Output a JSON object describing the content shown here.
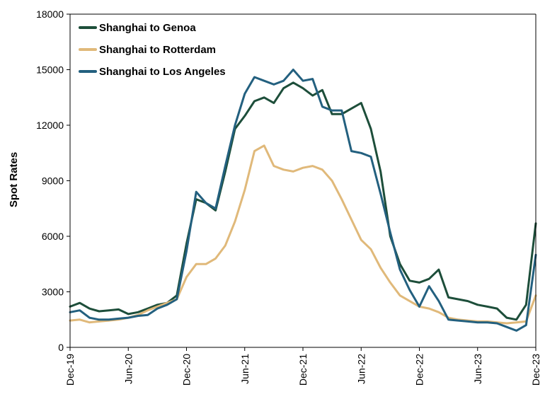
{
  "chart_data": {
    "type": "line",
    "ylabel": "Spot Rates",
    "xlabel": "",
    "ylim": [
      0,
      18000
    ],
    "yticks": [
      0,
      3000,
      6000,
      9000,
      12000,
      15000,
      18000
    ],
    "xticks": [
      "Dec-19",
      "Jun-20",
      "Dec-20",
      "Jun-21",
      "Dec-21",
      "Jun-22",
      "Dec-22",
      "Jun-23",
      "Dec-23"
    ],
    "grid": false,
    "legend_position": "top-left",
    "series": [
      {
        "name": "Shanghai to Genoa",
        "color": "#1d4e3a",
        "x": [
          "2019-12",
          "2020-01",
          "2020-02",
          "2020-03",
          "2020-04",
          "2020-05",
          "2020-06",
          "2020-07",
          "2020-08",
          "2020-09",
          "2020-10",
          "2020-11",
          "2020-12",
          "2021-01",
          "2021-02",
          "2021-03",
          "2021-04",
          "2021-05",
          "2021-06",
          "2021-07",
          "2021-08",
          "2021-09",
          "2021-10",
          "2021-11",
          "2021-12",
          "2022-01",
          "2022-02",
          "2022-03",
          "2022-04",
          "2022-05",
          "2022-06",
          "2022-07",
          "2022-08",
          "2022-09",
          "2022-10",
          "2022-11",
          "2022-12",
          "2023-01",
          "2023-02",
          "2023-03",
          "2023-04",
          "2023-05",
          "2023-06",
          "2023-07",
          "2023-08",
          "2023-09",
          "2023-10",
          "2023-11",
          "2023-12"
        ],
        "values": [
          2200,
          2400,
          2100,
          1950,
          2000,
          2050,
          1800,
          1900,
          2100,
          2300,
          2400,
          2800,
          5600,
          8000,
          7800,
          7400,
          9500,
          11800,
          12500,
          13300,
          13500,
          13200,
          14000,
          14300,
          14000,
          13600,
          13900,
          12600,
          12600,
          12900,
          13200,
          11800,
          9500,
          6000,
          4500,
          3600,
          3500,
          3700,
          4200,
          2700,
          2600,
          2500,
          2300,
          2200,
          2100,
          1600,
          1500,
          2300,
          6700
        ]
      },
      {
        "name": "Shanghai to Rotterdam",
        "color": "#e0b97a",
        "x": [
          "2019-12",
          "2020-01",
          "2020-02",
          "2020-03",
          "2020-04",
          "2020-05",
          "2020-06",
          "2020-07",
          "2020-08",
          "2020-09",
          "2020-10",
          "2020-11",
          "2020-12",
          "2021-01",
          "2021-02",
          "2021-03",
          "2021-04",
          "2021-05",
          "2021-06",
          "2021-07",
          "2021-08",
          "2021-09",
          "2021-10",
          "2021-11",
          "2021-12",
          "2022-01",
          "2022-02",
          "2022-03",
          "2022-04",
          "2022-05",
          "2022-06",
          "2022-07",
          "2022-08",
          "2022-09",
          "2022-10",
          "2022-11",
          "2022-12",
          "2023-01",
          "2023-02",
          "2023-03",
          "2023-04",
          "2023-05",
          "2023-06",
          "2023-07",
          "2023-08",
          "2023-09",
          "2023-10",
          "2023-11",
          "2023-12"
        ],
        "values": [
          1450,
          1500,
          1350,
          1400,
          1450,
          1500,
          1600,
          1750,
          2000,
          2200,
          2400,
          2600,
          3800,
          4500,
          4500,
          4800,
          5500,
          6800,
          8500,
          10600,
          10900,
          9800,
          9600,
          9500,
          9700,
          9800,
          9600,
          9000,
          8000,
          6900,
          5800,
          5300,
          4300,
          3500,
          2800,
          2500,
          2200,
          2100,
          1900,
          1600,
          1500,
          1450,
          1400,
          1400,
          1350,
          1300,
          1350,
          1400,
          2800
        ]
      },
      {
        "name": "Shanghai to Los Angeles",
        "color": "#23607f",
        "x": [
          "2019-12",
          "2020-01",
          "2020-02",
          "2020-03",
          "2020-04",
          "2020-05",
          "2020-06",
          "2020-07",
          "2020-08",
          "2020-09",
          "2020-10",
          "2020-11",
          "2020-12",
          "2021-01",
          "2021-02",
          "2021-03",
          "2021-04",
          "2021-05",
          "2021-06",
          "2021-07",
          "2021-08",
          "2021-09",
          "2021-10",
          "2021-11",
          "2021-12",
          "2022-01",
          "2022-02",
          "2022-03",
          "2022-04",
          "2022-05",
          "2022-06",
          "2022-07",
          "2022-08",
          "2022-09",
          "2022-10",
          "2022-11",
          "2022-12",
          "2023-01",
          "2023-02",
          "2023-03",
          "2023-04",
          "2023-05",
          "2023-06",
          "2023-07",
          "2023-08",
          "2023-09",
          "2023-10",
          "2023-11",
          "2023-12"
        ],
        "values": [
          1900,
          2000,
          1600,
          1500,
          1500,
          1550,
          1600,
          1700,
          1750,
          2100,
          2300,
          2600,
          5200,
          8400,
          7800,
          7500,
          9800,
          12000,
          13700,
          14600,
          14400,
          14200,
          14400,
          15000,
          14400,
          14500,
          13000,
          12800,
          12800,
          10600,
          10500,
          10300,
          8300,
          6200,
          4200,
          3100,
          2200,
          3300,
          2500,
          1500,
          1450,
          1400,
          1350,
          1350,
          1300,
          1100,
          900,
          1200,
          5000
        ]
      }
    ]
  }
}
